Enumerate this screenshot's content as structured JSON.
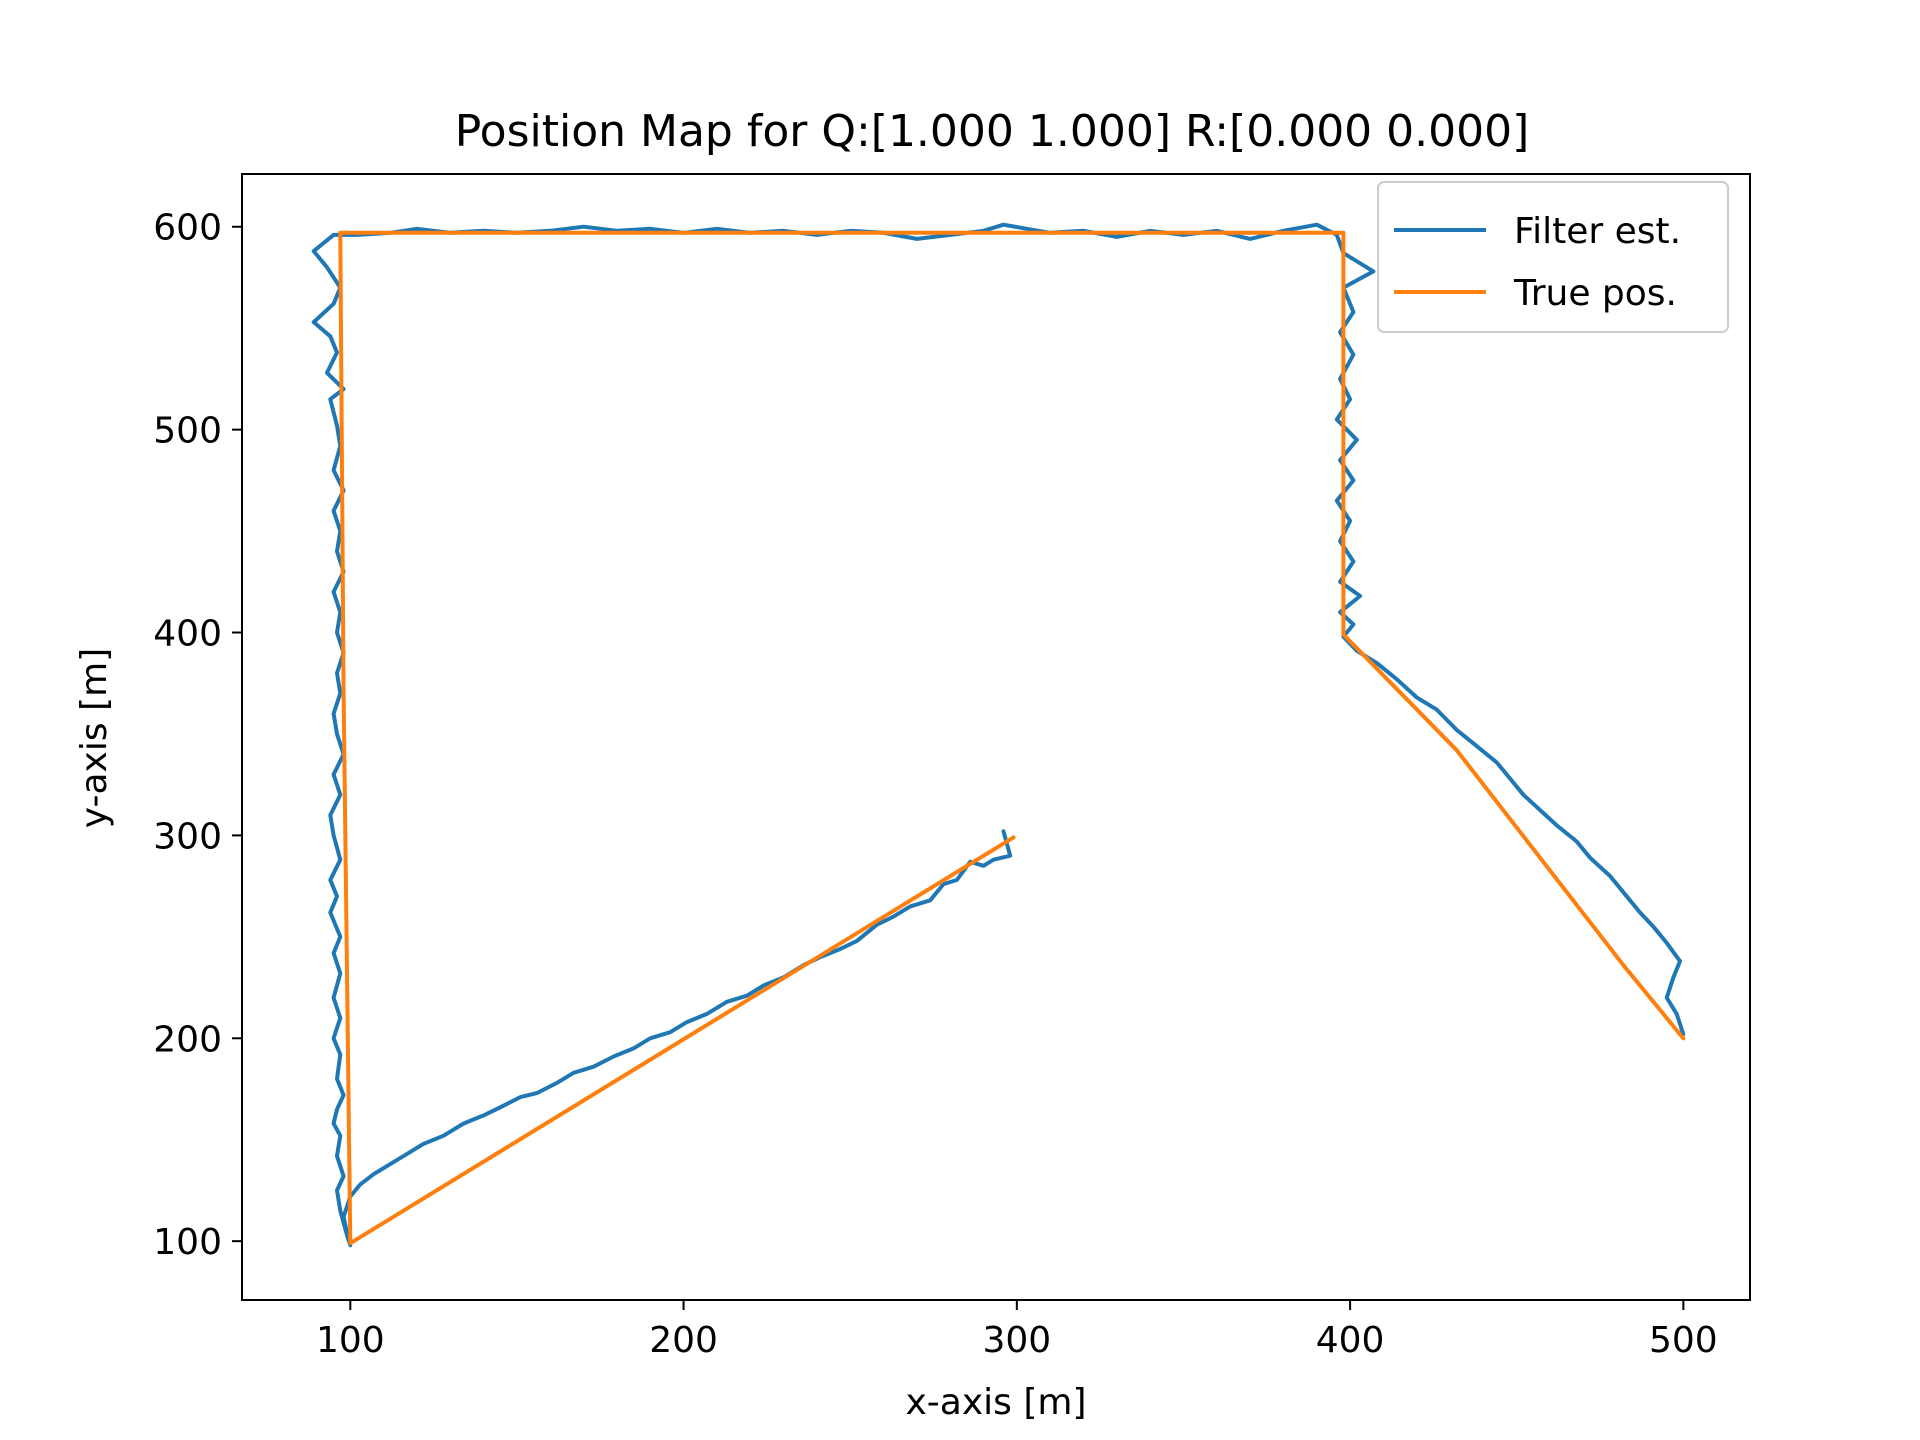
{
  "chart_data": {
    "type": "line",
    "title": "Position Map for Q:[1.000 1.000] R:[0.000 0.000]",
    "xlabel": "x-axis [m]",
    "ylabel": "y-axis [m]",
    "xlim": [
      67.5,
      520
    ],
    "ylim": [
      71,
      626
    ],
    "xticks": [
      100,
      200,
      300,
      400,
      500
    ],
    "yticks": [
      100,
      200,
      300,
      400,
      500,
      600
    ],
    "grid": false,
    "legend_position": "top-right",
    "series": [
      {
        "name": "Filter est.",
        "color": "#1f77b4",
        "points": [
          [
            296,
            302
          ],
          [
            298,
            290
          ],
          [
            293,
            288
          ],
          [
            290,
            285
          ],
          [
            286,
            287
          ],
          [
            282,
            278
          ],
          [
            278,
            276
          ],
          [
            274,
            268
          ],
          [
            268,
            265
          ],
          [
            263,
            260
          ],
          [
            258,
            256
          ],
          [
            252,
            248
          ],
          [
            247,
            244
          ],
          [
            241,
            240
          ],
          [
            236,
            236
          ],
          [
            230,
            230
          ],
          [
            224,
            226
          ],
          [
            219,
            221
          ],
          [
            213,
            218
          ],
          [
            207,
            212
          ],
          [
            201,
            208
          ],
          [
            196,
            203
          ],
          [
            190,
            200
          ],
          [
            185,
            195
          ],
          [
            179,
            191
          ],
          [
            173,
            186
          ],
          [
            167,
            183
          ],
          [
            162,
            178
          ],
          [
            156,
            173
          ],
          [
            151,
            171
          ],
          [
            145,
            166
          ],
          [
            140,
            162
          ],
          [
            134,
            158
          ],
          [
            128,
            152
          ],
          [
            122,
            148
          ],
          [
            117,
            143
          ],
          [
            112,
            138
          ],
          [
            107,
            133
          ],
          [
            103,
            128
          ],
          [
            100,
            122
          ],
          [
            98,
            112
          ],
          [
            99,
            104
          ],
          [
            100,
            98
          ],
          [
            99,
            103
          ],
          [
            97,
            115
          ],
          [
            96,
            125
          ],
          [
            98,
            132
          ],
          [
            96,
            142
          ],
          [
            97,
            152
          ],
          [
            95,
            158
          ],
          [
            96,
            165
          ],
          [
            98,
            172
          ],
          [
            96,
            180
          ],
          [
            97,
            192
          ],
          [
            95,
            200
          ],
          [
            97,
            210
          ],
          [
            95,
            220
          ],
          [
            97,
            232
          ],
          [
            95,
            242
          ],
          [
            97,
            250
          ],
          [
            94,
            262
          ],
          [
            96,
            270
          ],
          [
            94,
            278
          ],
          [
            97,
            288
          ],
          [
            95,
            300
          ],
          [
            94,
            310
          ],
          [
            97,
            320
          ],
          [
            95,
            330
          ],
          [
            98,
            340
          ],
          [
            96,
            350
          ],
          [
            95,
            360
          ],
          [
            97,
            370
          ],
          [
            96,
            380
          ],
          [
            98,
            390
          ],
          [
            96,
            400
          ],
          [
            97,
            410
          ],
          [
            95,
            420
          ],
          [
            98,
            430
          ],
          [
            96,
            440
          ],
          [
            97,
            450
          ],
          [
            95,
            460
          ],
          [
            98,
            470
          ],
          [
            95,
            480
          ],
          [
            97,
            492
          ],
          [
            96,
            502
          ],
          [
            94,
            515
          ],
          [
            98,
            520
          ],
          [
            93,
            528
          ],
          [
            96,
            538
          ],
          [
            94,
            546
          ],
          [
            89,
            553
          ],
          [
            95,
            562
          ],
          [
            97,
            570
          ],
          [
            93,
            580
          ],
          [
            89,
            588
          ],
          [
            95,
            596
          ],
          [
            102,
            596
          ],
          [
            112,
            597
          ],
          [
            120,
            599
          ],
          [
            130,
            597
          ],
          [
            140,
            598
          ],
          [
            150,
            597
          ],
          [
            160,
            598
          ],
          [
            170,
            600
          ],
          [
            180,
            598
          ],
          [
            190,
            599
          ],
          [
            200,
            597
          ],
          [
            210,
            599
          ],
          [
            220,
            597
          ],
          [
            230,
            598
          ],
          [
            240,
            596
          ],
          [
            250,
            598
          ],
          [
            260,
            597
          ],
          [
            270,
            594
          ],
          [
            280,
            596
          ],
          [
            290,
            598
          ],
          [
            296,
            601
          ],
          [
            303,
            599
          ],
          [
            310,
            597
          ],
          [
            320,
            598
          ],
          [
            330,
            595
          ],
          [
            340,
            598
          ],
          [
            350,
            596
          ],
          [
            360,
            598
          ],
          [
            370,
            594
          ],
          [
            380,
            598
          ],
          [
            390,
            601
          ],
          [
            396,
            596
          ],
          [
            398,
            587
          ],
          [
            407,
            578
          ],
          [
            398,
            570
          ],
          [
            401,
            558
          ],
          [
            397,
            548
          ],
          [
            401,
            537
          ],
          [
            397,
            525
          ],
          [
            400,
            515
          ],
          [
            396,
            505
          ],
          [
            402,
            495
          ],
          [
            397,
            485
          ],
          [
            401,
            475
          ],
          [
            396,
            465
          ],
          [
            400,
            455
          ],
          [
            397,
            445
          ],
          [
            401,
            435
          ],
          [
            397,
            425
          ],
          [
            403,
            418
          ],
          [
            397,
            410
          ],
          [
            401,
            404
          ],
          [
            398,
            398
          ],
          [
            402,
            391
          ],
          [
            408,
            385
          ],
          [
            414,
            377
          ],
          [
            420,
            368
          ],
          [
            426,
            362
          ],
          [
            432,
            352
          ],
          [
            438,
            344
          ],
          [
            444,
            336
          ],
          [
            448,
            328
          ],
          [
            452,
            320
          ],
          [
            458,
            311
          ],
          [
            462,
            305
          ],
          [
            468,
            297
          ],
          [
            472,
            289
          ],
          [
            478,
            280
          ],
          [
            483,
            270
          ],
          [
            487,
            262
          ],
          [
            491,
            255
          ],
          [
            495,
            247
          ],
          [
            499,
            238
          ],
          [
            497,
            230
          ],
          [
            495,
            220
          ],
          [
            498,
            212
          ],
          [
            500,
            202
          ]
        ]
      },
      {
        "name": "True pos.",
        "color": "#ff7f0e",
        "points": [
          [
            299,
            299
          ],
          [
            100,
            99
          ],
          [
            98,
            370
          ],
          [
            97,
            597
          ],
          [
            398,
            597
          ],
          [
            398,
            399
          ],
          [
            432,
            342
          ],
          [
            482,
            236
          ],
          [
            500,
            200
          ]
        ]
      }
    ]
  }
}
